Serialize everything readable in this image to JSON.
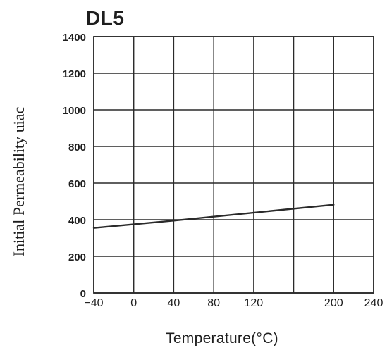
{
  "chart_data": {
    "type": "line",
    "title": "DL5",
    "xlabel": "Temperature(°C)",
    "ylabel": "Initial Permeability uiac",
    "xlim": [
      -40,
      240
    ],
    "ylim": [
      0,
      1400
    ],
    "x_ticks": [
      -40,
      0,
      40,
      80,
      120,
      200,
      240
    ],
    "x_tick_labels": [
      "−40",
      "0",
      "40",
      "80",
      "120",
      "200",
      "240"
    ],
    "y_ticks": [
      0,
      200,
      400,
      600,
      800,
      1000,
      1200,
      1400
    ],
    "y_tick_labels": [
      "0",
      "200",
      "400",
      "600",
      "800",
      "1000",
      "1200",
      "1400"
    ],
    "grid_x": [
      -40,
      0,
      40,
      80,
      120,
      160,
      200,
      240
    ],
    "grid_y": [
      0,
      200,
      400,
      600,
      800,
      1000,
      1200,
      1400
    ],
    "grid": true,
    "legend": "none",
    "series": [
      {
        "x": [
          -40,
          40,
          200
        ],
        "y": [
          355,
          395,
          482
        ]
      }
    ],
    "colors": {
      "line": "#2a2a2a",
      "grid": "#2a2a2a",
      "text": "#1e1e1e",
      "background": "#ffffff"
    }
  }
}
